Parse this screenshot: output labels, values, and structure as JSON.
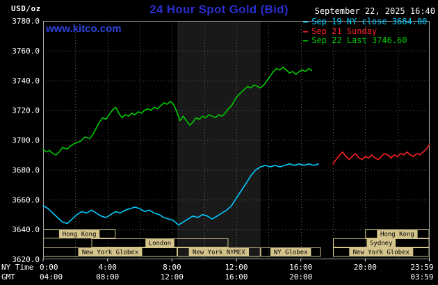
{
  "header": {
    "unit_label": "USD/oz",
    "title": "24 Hour Spot Gold (Bid)",
    "title_color": "#2a2fd0",
    "datetime": "September 22, 2025 16:40",
    "watermark": "www.kitco.com",
    "watermark_color": "#2d43dd",
    "legend": [
      {
        "dash": "–",
        "label": "Sep 19 NY close 3684.00",
        "color": "#00ccff"
      },
      {
        "dash": "–",
        "label": "Sep 21 Sunday",
        "color": "#ff2222"
      },
      {
        "dash": "–",
        "label": "Sep 22 Last 3746.60",
        "color": "#00cc00"
      }
    ]
  },
  "chart_data": {
    "type": "line",
    "title": "24 Hour Spot Gold (Bid)",
    "ylabel": "USD/oz",
    "xlabel": "NY Time",
    "x_axis_row_labels": [
      "NY Time",
      "GMT"
    ],
    "xlim": [
      0,
      24
    ],
    "ylim": [
      3620,
      3780
    ],
    "y_tick_step": 20,
    "x_grid_step": 2,
    "grid": true,
    "grid_color": "#5f5f5f",
    "border_color": "#a8a8a8",
    "axis_text_color": "#ffffff",
    "session_color": "#d4c48c",
    "shaded_band": {
      "x0": 8.33,
      "x1": 13.5,
      "color": "#191919"
    },
    "x_ticks": [
      {
        "h": 0,
        "ny": "0:00",
        "gmt": "04:00"
      },
      {
        "h": 4,
        "ny": "4:00",
        "gmt": "08:00"
      },
      {
        "h": 8,
        "ny": "8:00",
        "gmt": "12:00"
      },
      {
        "h": 12,
        "ny": "12:00",
        "gmt": "16:00"
      },
      {
        "h": 16,
        "ny": "16:00",
        "gmt": "20:00"
      },
      {
        "h": 20,
        "ny": "20:00",
        "gmt": ""
      },
      {
        "h": 23.98,
        "ny": "23:59",
        "gmt": "03:59"
      }
    ],
    "sessions": [
      {
        "row": 0,
        "start": 0,
        "end": 4.5,
        "label": "Hong Kong"
      },
      {
        "row": 0,
        "start": 20,
        "end": 23.98,
        "label": "Hong Kong"
      },
      {
        "row": 1,
        "start": 3,
        "end": 11.5,
        "label": "London"
      },
      {
        "row": 1,
        "start": 18,
        "end": 23.98,
        "label": "Sydney"
      },
      {
        "row": 2,
        "start": 0,
        "end": 8.33,
        "label": "New York Globex"
      },
      {
        "row": 2,
        "start": 8.33,
        "end": 13.5,
        "label": "New York NYMEX"
      },
      {
        "row": 2,
        "start": 13.5,
        "end": 17.25,
        "label": "NY Globex"
      },
      {
        "row": 2,
        "start": 18,
        "end": 23.98,
        "label": "New York Globex"
      }
    ],
    "series": [
      {
        "id": "sep19",
        "name": "Sep 19 NY close 3684.00",
        "color": "#00ccff",
        "x": [
          0,
          0.3,
          0.6,
          0.9,
          1.2,
          1.5,
          1.8,
          2.1,
          2.4,
          2.7,
          3,
          3.3,
          3.6,
          3.9,
          4.2,
          4.5,
          4.8,
          5.1,
          5.4,
          5.7,
          6,
          6.3,
          6.6,
          6.9,
          7.2,
          7.5,
          7.8,
          8.1,
          8.4,
          8.7,
          9,
          9.3,
          9.6,
          9.9,
          10.2,
          10.5,
          10.8,
          11.1,
          11.4,
          11.7,
          12,
          12.3,
          12.6,
          12.9,
          13.2,
          13.5,
          13.8,
          14.1,
          14.4,
          14.7,
          15,
          15.3,
          15.6,
          15.9,
          16.2,
          16.5,
          16.8,
          17.1
        ],
        "y": [
          3656,
          3654,
          3651,
          3648,
          3645,
          3644,
          3647,
          3650,
          3652,
          3651,
          3653,
          3651,
          3649,
          3648,
          3650,
          3652,
          3651,
          3653,
          3654,
          3655,
          3654,
          3652,
          3653,
          3651,
          3650,
          3648,
          3647,
          3646,
          3643,
          3645,
          3647,
          3649,
          3648,
          3650,
          3649,
          3647,
          3649,
          3651,
          3653,
          3656,
          3661,
          3666,
          3671,
          3676,
          3680,
          3682,
          3683,
          3682,
          3683,
          3682,
          3683,
          3684,
          3683,
          3684,
          3683,
          3684,
          3683,
          3684
        ]
      },
      {
        "id": "sep21",
        "name": "Sep 21 Sunday",
        "color": "#ff2222",
        "x": [
          18,
          18.2,
          18.4,
          18.6,
          18.8,
          19,
          19.2,
          19.4,
          19.6,
          19.8,
          20,
          20.2,
          20.4,
          20.6,
          20.8,
          21,
          21.2,
          21.4,
          21.6,
          21.8,
          22,
          22.2,
          22.4,
          22.6,
          22.8,
          23,
          23.2,
          23.4,
          23.6,
          23.8,
          23.98
        ],
        "y": [
          3684,
          3687,
          3690,
          3692,
          3689,
          3687,
          3689,
          3691,
          3688,
          3687,
          3689,
          3688,
          3690,
          3688,
          3687,
          3689,
          3691,
          3690,
          3688,
          3690,
          3689,
          3691,
          3690,
          3692,
          3690,
          3689,
          3691,
          3690,
          3692,
          3694,
          3697
        ]
      },
      {
        "id": "sep22",
        "name": "Sep 22 Last 3746.60",
        "color": "#00cc00",
        "x": [
          0,
          0.2,
          0.4,
          0.6,
          0.8,
          1,
          1.2,
          1.5,
          1.7,
          2,
          2.3,
          2.6,
          2.9,
          3.1,
          3.3,
          3.5,
          3.7,
          3.9,
          4.1,
          4.3,
          4.5,
          4.7,
          4.9,
          5.1,
          5.3,
          5.5,
          5.7,
          5.9,
          6.1,
          6.3,
          6.5,
          6.7,
          6.9,
          7.1,
          7.3,
          7.5,
          7.7,
          7.9,
          8.1,
          8.3,
          8.5,
          8.7,
          8.9,
          9.1,
          9.3,
          9.5,
          9.7,
          9.9,
          10.1,
          10.3,
          10.5,
          10.7,
          10.9,
          11.1,
          11.3,
          11.5,
          11.7,
          11.9,
          12.1,
          12.3,
          12.5,
          12.7,
          12.9,
          13.1,
          13.3,
          13.5,
          13.7,
          13.9,
          14.1,
          14.3,
          14.5,
          14.7,
          14.9,
          15.1,
          15.3,
          15.5,
          15.7,
          15.9,
          16.1,
          16.3,
          16.5,
          16.67
        ],
        "y": [
          3694,
          3692,
          3693,
          3691,
          3690,
          3692,
          3695,
          3694,
          3696,
          3698,
          3699,
          3702,
          3701,
          3704,
          3708,
          3712,
          3715,
          3714,
          3717,
          3720,
          3722,
          3718,
          3715,
          3717,
          3716,
          3718,
          3717,
          3719,
          3718,
          3720,
          3721,
          3720,
          3722,
          3721,
          3723,
          3725,
          3724,
          3726,
          3724,
          3719,
          3713,
          3716,
          3713,
          3710,
          3712,
          3715,
          3714,
          3716,
          3715,
          3717,
          3716,
          3715,
          3717,
          3716,
          3718,
          3721,
          3723,
          3727,
          3730,
          3732,
          3734,
          3736,
          3735,
          3737,
          3736,
          3735,
          3737,
          3740,
          3743,
          3746,
          3748,
          3747,
          3749,
          3747,
          3745,
          3746,
          3744,
          3746,
          3747,
          3746,
          3748,
          3746.6
        ]
      }
    ]
  }
}
